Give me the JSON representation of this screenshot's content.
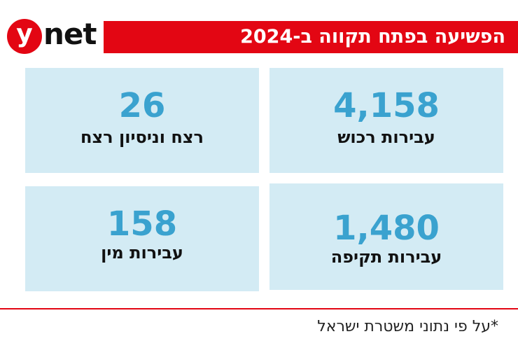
{
  "logo": {
    "letter": "y",
    "text": "net",
    "color": "#e30613"
  },
  "header": {
    "title": "הפשיעה בפתח תקווה ב-2024",
    "color": "#e30613"
  },
  "stats": [
    {
      "value": "4,158",
      "label": "עבירות רכוש"
    },
    {
      "value": "26",
      "label": "רצח וניסיון רצח"
    },
    {
      "value": "1,480",
      "label": "עבירות תקיפה"
    },
    {
      "value": "158",
      "label": "עבירות מין"
    }
  ],
  "colors": {
    "box_background": "#d3ebf4",
    "value_color": "#3aa2cf"
  },
  "footnote": "*על פי נתוני משטרת ישראל"
}
